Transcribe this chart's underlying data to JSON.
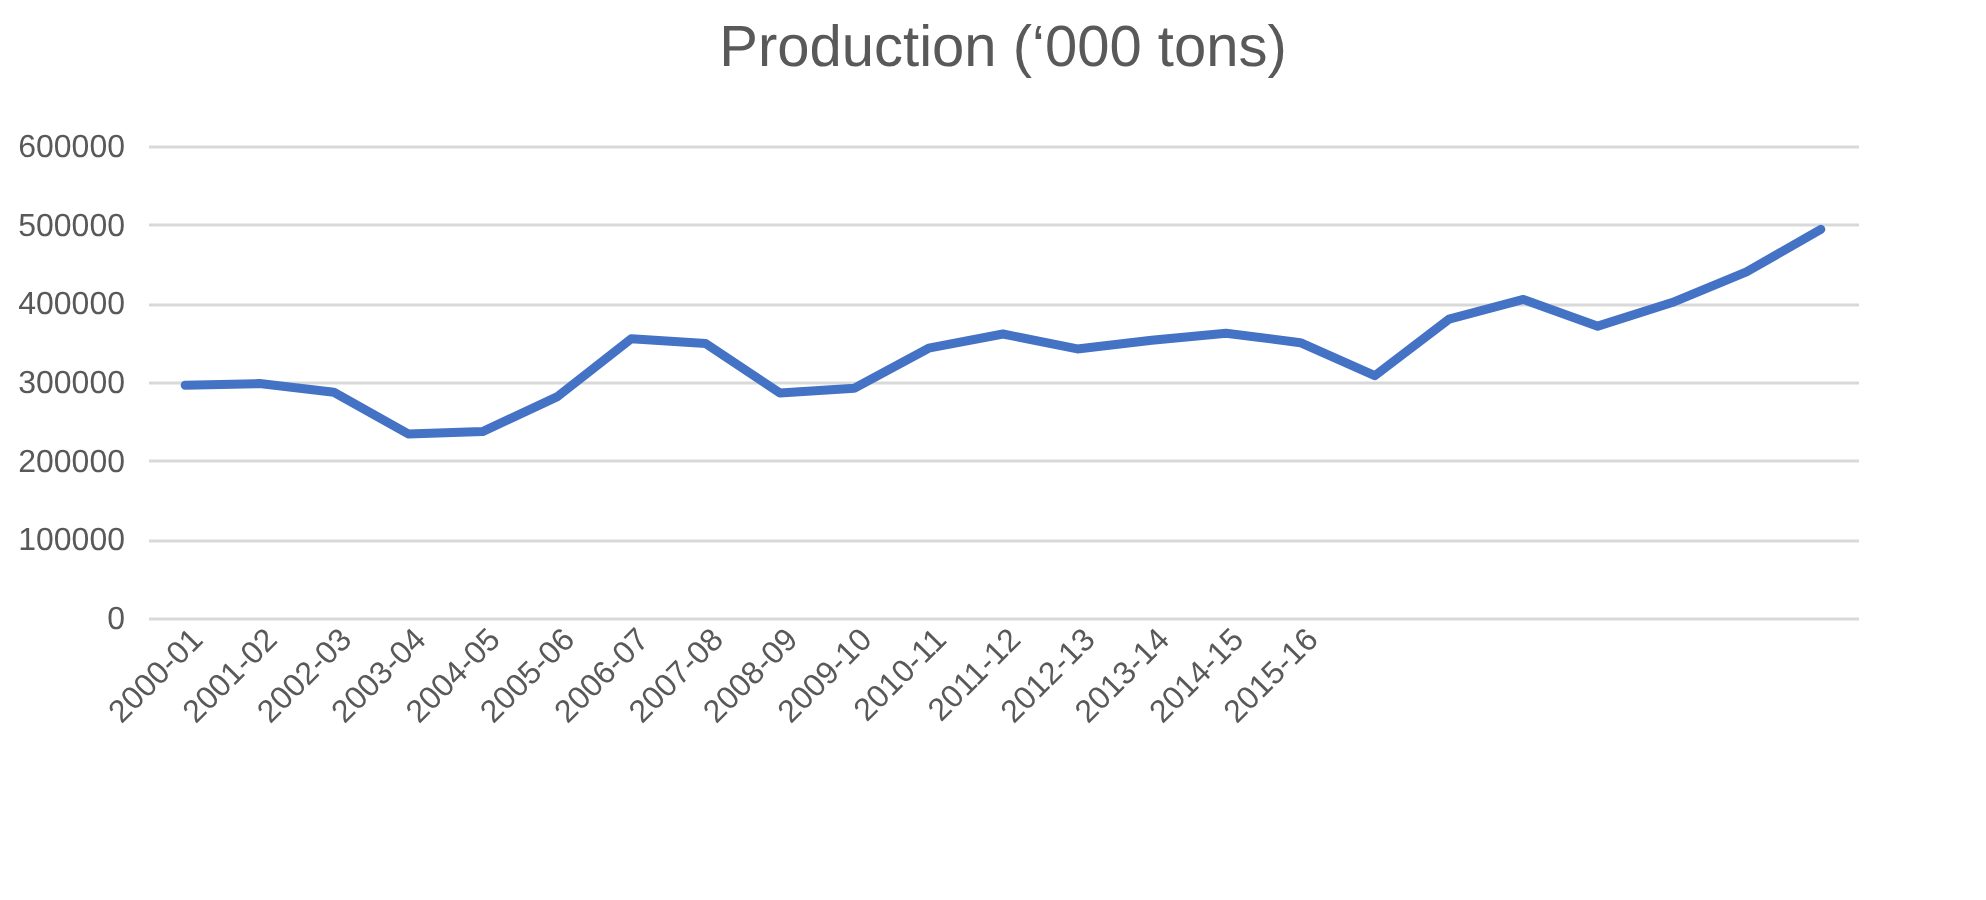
{
  "chart_data": {
    "type": "line",
    "title": "Production (‘000 tons)",
    "categories": [
      "2000-01",
      "2001-02",
      "2002-03",
      "2003-04",
      "2004-05",
      "2005-06",
      "2006-07",
      "2007-08",
      "2008-09",
      "2009-10",
      "2010-11",
      "2011-12",
      "2012-13",
      "2013-14",
      "2014-15",
      "2015-16",
      null,
      null,
      null,
      null,
      null,
      null,
      null
    ],
    "series": [
      {
        "color": "#4472c4",
        "values": [
          296000,
          298000,
          287000,
          234000,
          237000,
          281000,
          355000,
          349000,
          286000,
          292000,
          343000,
          361000,
          342000,
          353000,
          362000,
          350000,
          308000,
          380000,
          405000,
          371000,
          401000,
          440000,
          494000
        ]
      }
    ],
    "ylim": [
      0,
      600000
    ],
    "yticks": [
      0,
      100000,
      200000,
      300000,
      400000,
      500000,
      600000
    ],
    "grid": "y",
    "legend": false,
    "marker": "none",
    "line_style": "solid"
  }
}
